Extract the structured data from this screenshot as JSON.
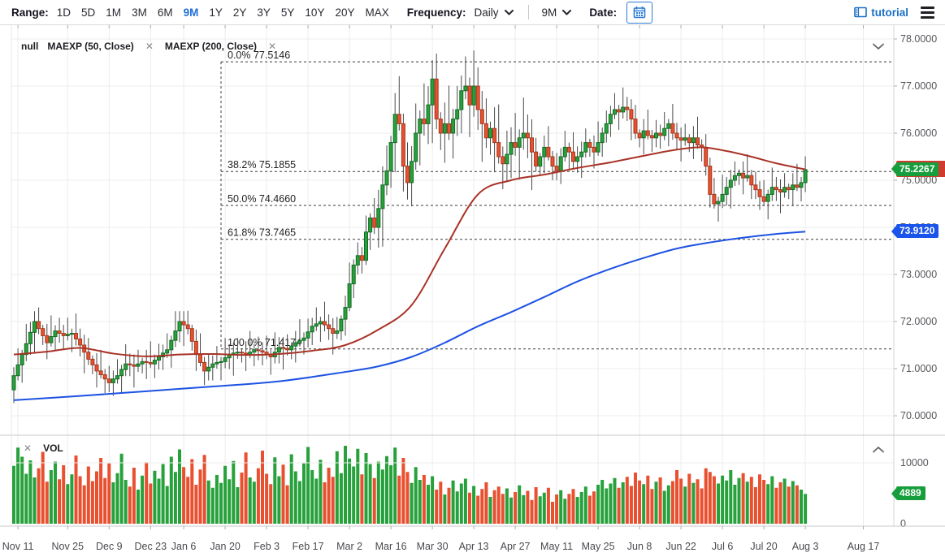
{
  "toolbar": {
    "range_label": "Range:",
    "range_options": [
      "1D",
      "5D",
      "1M",
      "3M",
      "6M",
      "9M",
      "1Y",
      "2Y",
      "3Y",
      "5Y",
      "10Y",
      "20Y",
      "MAX"
    ],
    "range_active": "9M",
    "frequency_label": "Frequency:",
    "frequency_value": "Daily",
    "period_value": "9M",
    "date_label": "Date:",
    "tutorial_label": "tutorial"
  },
  "price_pane": {
    "legend_items": [
      {
        "label": "null",
        "closable": false
      },
      {
        "label": "MAEXP (50, Close)",
        "closable": true
      },
      {
        "label": "MAEXP (200, Close)",
        "closable": true
      }
    ]
  },
  "volume_pane": {
    "legend_label": "VOL"
  },
  "badges": {
    "last_price": "75.2267",
    "ma200": "73.9120",
    "volume": "4889"
  },
  "colors": {
    "up": "#27a13b",
    "up_border": "#146a24",
    "down": "#e8502f",
    "down_border": "#a33920",
    "wick": "#4a4a4a",
    "ma50": "#a93226",
    "ma200": "#1d52e3",
    "grid": "#ececec",
    "border": "#c9c9c9",
    "axis_text": "#55555c",
    "fib_line": "#3a3a3a",
    "fib_text": "#1f1f1f",
    "badge_green": "#179e3c",
    "badge_blue": "#1b54ea",
    "badge_red": "#cf3b2f",
    "accent_blue": "#1f6fd6"
  },
  "chart_data": {
    "type": "candlestick",
    "title": "",
    "legend_position": "top-left",
    "grid": true,
    "price_axis": {
      "tick_labels": [
        "78.0000",
        "77.0000",
        "76.0000",
        "75.0000",
        "74.0000",
        "73.0000",
        "72.0000",
        "71.0000",
        "70.0000"
      ],
      "tick_values": [
        78,
        77,
        76,
        75,
        74,
        73,
        72,
        71,
        70
      ],
      "range": [
        69.7,
        78.3
      ]
    },
    "volume_axis": {
      "tick_labels": [
        "10000",
        "0"
      ],
      "tick_values": [
        10000,
        0
      ],
      "max": 13000
    },
    "date_ticks": [
      [
        "Nov 11",
        1
      ],
      [
        "Nov 25",
        13
      ],
      [
        "Dec 9",
        23
      ],
      [
        "Dec 23",
        33
      ],
      [
        "Jan 6",
        41
      ],
      [
        "Jan 20",
        51
      ],
      [
        "Feb 3",
        61
      ],
      [
        "Feb 17",
        71
      ],
      [
        "Mar 2",
        81
      ],
      [
        "Mar 16",
        91
      ],
      [
        "Mar 30",
        101
      ],
      [
        "Apr 13",
        111
      ],
      [
        "Apr 27",
        121
      ],
      [
        "May 11",
        131
      ],
      [
        "May 25",
        141
      ],
      [
        "Jun 8",
        151
      ],
      [
        "Jun 22",
        161
      ],
      [
        "Jul 6",
        171
      ],
      [
        "Jul 20",
        181
      ],
      [
        "Aug 3",
        191
      ],
      [
        "Aug 17",
        205
      ]
    ],
    "fibonacci": {
      "start_index": 50,
      "levels": [
        {
          "pct": "0.0%",
          "value": 77.5146,
          "label": "0.0% 77.5146"
        },
        {
          "pct": "38.2%",
          "value": 75.1855,
          "label": "38.2% 75.1855"
        },
        {
          "pct": "50.0%",
          "value": 74.466,
          "label": "50.0% 74.4660"
        },
        {
          "pct": "61.8%",
          "value": 73.7465,
          "label": "61.8% 73.7465"
        },
        {
          "pct": "100.0%",
          "value": 71.4174,
          "label": "100.0% 71.4174"
        }
      ]
    },
    "candles": {
      "open_rule": "previous_close",
      "first_open": 70.55,
      "closes": [
        70.85,
        71.08,
        71.3,
        71.53,
        71.77,
        72.0,
        71.85,
        71.7,
        71.55,
        71.68,
        71.8,
        71.75,
        71.7,
        71.73,
        71.75,
        71.63,
        71.5,
        71.35,
        71.2,
        71.08,
        70.95,
        70.87,
        70.78,
        70.7,
        70.78,
        70.85,
        70.98,
        71.1,
        71.08,
        71.05,
        71.1,
        71.15,
        71.13,
        71.1,
        71.18,
        71.25,
        71.33,
        71.4,
        71.6,
        71.8,
        72.0,
        71.93,
        71.85,
        71.58,
        71.3,
        71.13,
        70.95,
        71.03,
        71.1,
        71.13,
        71.15,
        71.23,
        71.3,
        71.33,
        71.35,
        71.33,
        71.3,
        71.35,
        71.4,
        71.38,
        71.35,
        71.3,
        71.25,
        71.35,
        71.45,
        71.43,
        71.4,
        71.48,
        71.55,
        71.6,
        71.65,
        71.78,
        71.9,
        71.95,
        72.0,
        71.93,
        71.85,
        71.75,
        71.8,
        72.05,
        72.3,
        72.8,
        73.2,
        73.4,
        73.3,
        73.9,
        74.2,
        74.0,
        74.4,
        74.9,
        75.2,
        75.8,
        76.4,
        76.2,
        75.3,
        74.95,
        75.4,
        76.0,
        76.3,
        76.2,
        76.6,
        77.15,
        76.3,
        76.0,
        76.2,
        76.0,
        76.3,
        76.5,
        76.9,
        77.0,
        76.6,
        77.0,
        76.5,
        76.2,
        75.9,
        76.1,
        75.8,
        75.5,
        75.35,
        75.55,
        75.8,
        75.7,
        75.9,
        76.0,
        75.9,
        75.6,
        75.3,
        75.5,
        75.7,
        75.5,
        75.3,
        75.2,
        75.5,
        75.7,
        75.6,
        75.4,
        75.5,
        75.6,
        75.8,
        75.7,
        75.6,
        75.8,
        76.0,
        76.2,
        76.4,
        76.5,
        76.45,
        76.55,
        76.5,
        76.3,
        76.0,
        75.9,
        76.05,
        75.95,
        75.9,
        76.0,
        75.95,
        76.1,
        76.2,
        76.0,
        75.9,
        75.85,
        75.9,
        75.8,
        75.9,
        75.75,
        75.7,
        75.3,
        74.7,
        74.5,
        74.55,
        74.7,
        74.85,
        75.0,
        75.1,
        75.15,
        75.05,
        75.1,
        74.9,
        74.8,
        74.65,
        74.55,
        74.7,
        74.85,
        74.8,
        74.75,
        74.85,
        74.8,
        74.9,
        74.85,
        74.95,
        75.2267
      ],
      "wick_high_cycle": [
        0.18,
        0.35,
        0.1,
        0.42,
        0.22,
        0.22,
        0.3,
        0.08,
        0.25,
        0.45,
        0.12,
        0.28
      ],
      "wick_low_cycle": [
        0.28,
        0.1,
        0.38,
        0.14,
        0.24,
        0.45,
        0.12,
        0.2,
        0.35,
        0.08,
        0.3,
        0.2
      ],
      "volatile_range": [
        88,
        125
      ],
      "volatile_scale": 1.8
    },
    "volumes": [
      9500,
      12500,
      11000,
      8200,
      10400,
      7600,
      9100,
      11800,
      6900,
      8800,
      10200,
      7300,
      9600,
      6500,
      8100,
      11200,
      7800,
      6300,
      9400,
      7000,
      8600,
      10800,
      7500,
      9900,
      6800,
      8300,
      11500,
      7200,
      6100,
      9200,
      5600,
      7900,
      10100,
      6600,
      8700,
      7400,
      9800,
      6200,
      11000,
      8500,
      12200,
      9300,
      7700,
      10600,
      6400,
      8900,
      11300,
      7100,
      5900,
      8000,
      6700,
      9500,
      7300,
      10300,
      6000,
      8400,
      11700,
      7600,
      6900,
      9100,
      12000,
      8200,
      6500,
      10900,
      7800,
      9700,
      6300,
      11400,
      8600,
      7000,
      9900,
      12600,
      8800,
      7400,
      10500,
      6800,
      9200,
      7700,
      11900,
      8300,
      12800,
      10700,
      9400,
      12300,
      8100,
      11600,
      9800,
      7500,
      10200,
      8900,
      11100,
      9600,
      12500,
      7900,
      10800,
      8500,
      6700,
      9300,
      7200,
      8000,
      6400,
      7800,
      5600,
      6900,
      4800,
      5900,
      7100,
      5300,
      6600,
      7400,
      5100,
      6200,
      4600,
      5700,
      6800,
      4400,
      5500,
      6100,
      4900,
      5800,
      4300,
      5200,
      6300,
      4700,
      5400,
      3900,
      6000,
      4500,
      5100,
      5900,
      3600,
      4800,
      5500,
      4100,
      4900,
      5700,
      4400,
      5200,
      6100,
      4600,
      5300,
      6400,
      7200,
      5800,
      6600,
      7500,
      5900,
      6800,
      7700,
      6200,
      8400,
      7100,
      6500,
      7900,
      5700,
      6900,
      7600,
      5400,
      6300,
      7000,
      8800,
      7400,
      6100,
      8200,
      6700,
      7300,
      5800,
      9100,
      8500,
      7800,
      6600,
      7900,
      7100,
      8800,
      6400,
      7500,
      8300,
      6900,
      7700,
      6000,
      8100,
      7200,
      6500,
      7800,
      5900,
      6800,
      7400,
      6100,
      7000,
      6300,
      5600,
      4889
    ],
    "ma50": [
      [
        0,
        71.3
      ],
      [
        8,
        71.36
      ],
      [
        16,
        71.44
      ],
      [
        24,
        71.32
      ],
      [
        32,
        71.26
      ],
      [
        40,
        71.3
      ],
      [
        48,
        71.31
      ],
      [
        56,
        71.29
      ],
      [
        64,
        71.31
      ],
      [
        72,
        71.38
      ],
      [
        80,
        71.5
      ],
      [
        88,
        71.83
      ],
      [
        96,
        72.35
      ],
      [
        104,
        73.55
      ],
      [
        112,
        74.7
      ],
      [
        120,
        75.0
      ],
      [
        128,
        75.12
      ],
      [
        136,
        75.26
      ],
      [
        144,
        75.38
      ],
      [
        152,
        75.52
      ],
      [
        160,
        75.65
      ],
      [
        166,
        75.7
      ],
      [
        172,
        75.62
      ],
      [
        178,
        75.5
      ],
      [
        184,
        75.36
      ],
      [
        191,
        75.23
      ]
    ],
    "ma200": [
      [
        0,
        70.33
      ],
      [
        16,
        70.42
      ],
      [
        32,
        70.52
      ],
      [
        48,
        70.62
      ],
      [
        64,
        70.73
      ],
      [
        80,
        70.93
      ],
      [
        88,
        71.05
      ],
      [
        96,
        71.25
      ],
      [
        104,
        71.55
      ],
      [
        112,
        71.9
      ],
      [
        120,
        72.2
      ],
      [
        128,
        72.52
      ],
      [
        136,
        72.85
      ],
      [
        144,
        73.12
      ],
      [
        152,
        73.35
      ],
      [
        160,
        73.55
      ],
      [
        168,
        73.68
      ],
      [
        176,
        73.78
      ],
      [
        184,
        73.86
      ],
      [
        191,
        73.91
      ]
    ],
    "last_price": 75.2267,
    "ma200_last": 73.912,
    "last_volume": 4889
  }
}
